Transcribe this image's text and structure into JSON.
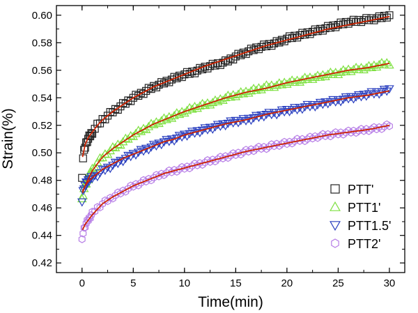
{
  "chart_data": {
    "type": "scatter",
    "title": "",
    "xlabel": "Time(min)",
    "ylabel": "Strain(%)",
    "xlim": [
      -2.5,
      31.5
    ],
    "ylim": [
      0.413,
      0.607
    ],
    "xticks": [
      0,
      5,
      10,
      15,
      20,
      25,
      30
    ],
    "yticks": [
      0.42,
      0.44,
      0.46,
      0.48,
      0.5,
      0.52,
      0.54,
      0.56,
      0.58,
      0.6
    ],
    "ytick_labels": [
      "0.42",
      "0.44",
      "0.46",
      "0.48",
      "0.50",
      "0.52",
      "0.54",
      "0.56",
      "0.58",
      "0.60"
    ],
    "fit_color": "#cc2200",
    "legend_position": "bottom-right",
    "series": [
      {
        "name": "PTT'",
        "marker": "square",
        "color": "#222222",
        "points": [
          [
            0,
            0.483
          ],
          [
            0.1,
            0.496
          ],
          [
            0.2,
            0.501
          ],
          [
            0.35,
            0.506
          ],
          [
            0.5,
            0.509
          ],
          [
            0.75,
            0.512
          ],
          [
            1,
            0.515
          ],
          [
            1.5,
            0.52
          ],
          [
            2,
            0.524
          ],
          [
            3,
            0.53
          ],
          [
            4,
            0.535
          ],
          [
            5,
            0.54
          ],
          [
            6,
            0.544
          ],
          [
            7,
            0.548
          ],
          [
            8,
            0.551
          ],
          [
            9,
            0.554
          ],
          [
            10,
            0.557
          ],
          [
            11,
            0.559
          ],
          [
            12,
            0.562
          ],
          [
            13,
            0.564
          ],
          [
            14,
            0.566
          ],
          [
            15,
            0.57
          ],
          [
            16,
            0.573
          ],
          [
            17,
            0.576
          ],
          [
            18,
            0.578
          ],
          [
            19,
            0.58
          ],
          [
            20,
            0.583
          ],
          [
            21,
            0.585
          ],
          [
            22,
            0.587
          ],
          [
            23,
            0.589
          ],
          [
            24,
            0.591
          ],
          [
            25,
            0.593
          ],
          [
            26,
            0.595
          ],
          [
            27,
            0.596
          ],
          [
            28,
            0.597
          ],
          [
            29,
            0.598
          ],
          [
            30,
            0.6
          ]
        ],
        "fit": [
          [
            0.05,
            0.497
          ],
          [
            0.3,
            0.506
          ],
          [
            0.6,
            0.511
          ],
          [
            1,
            0.515
          ],
          [
            1.5,
            0.52
          ],
          [
            2,
            0.524
          ],
          [
            3,
            0.53
          ],
          [
            4,
            0.535
          ],
          [
            5,
            0.54
          ],
          [
            6,
            0.544
          ],
          [
            7,
            0.548
          ],
          [
            8,
            0.551
          ],
          [
            9,
            0.554
          ],
          [
            10,
            0.557
          ],
          [
            12,
            0.563
          ],
          [
            14,
            0.568
          ],
          [
            16,
            0.573
          ],
          [
            18,
            0.578
          ],
          [
            20,
            0.582
          ],
          [
            22,
            0.586
          ],
          [
            24,
            0.59
          ],
          [
            26,
            0.593
          ],
          [
            28,
            0.596
          ],
          [
            30,
            0.599
          ]
        ]
      },
      {
        "name": "PTT1'",
        "marker": "triangle-up",
        "color": "#7ee040",
        "points": [
          [
            0,
            0.466
          ],
          [
            0.1,
            0.47
          ],
          [
            0.2,
            0.474
          ],
          [
            0.35,
            0.477
          ],
          [
            0.5,
            0.48
          ],
          [
            0.75,
            0.484
          ],
          [
            1,
            0.488
          ],
          [
            1.5,
            0.493
          ],
          [
            2,
            0.497
          ],
          [
            3,
            0.503
          ],
          [
            4,
            0.508
          ],
          [
            5,
            0.513
          ],
          [
            6,
            0.517
          ],
          [
            7,
            0.521
          ],
          [
            8,
            0.524
          ],
          [
            9,
            0.527
          ],
          [
            10,
            0.53
          ],
          [
            11,
            0.533
          ],
          [
            12,
            0.535
          ],
          [
            13,
            0.537
          ],
          [
            14,
            0.54
          ],
          [
            15,
            0.542
          ],
          [
            16,
            0.544
          ],
          [
            17,
            0.546
          ],
          [
            18,
            0.548
          ],
          [
            19,
            0.549
          ],
          [
            20,
            0.551
          ],
          [
            21,
            0.552
          ],
          [
            22,
            0.554
          ],
          [
            23,
            0.555
          ],
          [
            24,
            0.557
          ],
          [
            25,
            0.558
          ],
          [
            26,
            0.56
          ],
          [
            27,
            0.561
          ],
          [
            28,
            0.562
          ],
          [
            29,
            0.564
          ],
          [
            30,
            0.565
          ]
        ],
        "fit": [
          [
            0.05,
            0.471
          ],
          [
            0.3,
            0.476
          ],
          [
            0.6,
            0.481
          ],
          [
            1,
            0.487
          ],
          [
            1.5,
            0.492
          ],
          [
            2,
            0.497
          ],
          [
            3,
            0.503
          ],
          [
            4,
            0.508
          ],
          [
            5,
            0.513
          ],
          [
            6,
            0.517
          ],
          [
            7,
            0.521
          ],
          [
            8,
            0.524
          ],
          [
            9,
            0.527
          ],
          [
            10,
            0.53
          ],
          [
            12,
            0.535
          ],
          [
            14,
            0.54
          ],
          [
            16,
            0.544
          ],
          [
            18,
            0.547
          ],
          [
            20,
            0.551
          ],
          [
            22,
            0.554
          ],
          [
            24,
            0.557
          ],
          [
            26,
            0.56
          ],
          [
            28,
            0.562
          ],
          [
            30,
            0.565
          ]
        ]
      },
      {
        "name": "PTT1.5'",
        "marker": "triangle-down",
        "color": "#2a3fbf",
        "points": [
          [
            0,
            0.465
          ],
          [
            0.1,
            0.472
          ],
          [
            0.2,
            0.475
          ],
          [
            0.35,
            0.477
          ],
          [
            0.5,
            0.479
          ],
          [
            0.75,
            0.481
          ],
          [
            1,
            0.482
          ],
          [
            1.5,
            0.484
          ],
          [
            2,
            0.487
          ],
          [
            3,
            0.491
          ],
          [
            4,
            0.495
          ],
          [
            5,
            0.499
          ],
          [
            6,
            0.502
          ],
          [
            7,
            0.505
          ],
          [
            8,
            0.508
          ],
          [
            9,
            0.51
          ],
          [
            10,
            0.513
          ],
          [
            11,
            0.515
          ],
          [
            12,
            0.517
          ],
          [
            13,
            0.519
          ],
          [
            14,
            0.521
          ],
          [
            15,
            0.523
          ],
          [
            16,
            0.524
          ],
          [
            17,
            0.526
          ],
          [
            18,
            0.528
          ],
          [
            19,
            0.529
          ],
          [
            20,
            0.531
          ],
          [
            21,
            0.532
          ],
          [
            22,
            0.534
          ],
          [
            23,
            0.535
          ],
          [
            24,
            0.537
          ],
          [
            25,
            0.538
          ],
          [
            26,
            0.54
          ],
          [
            27,
            0.541
          ],
          [
            28,
            0.543
          ],
          [
            29,
            0.544
          ],
          [
            30,
            0.546
          ]
        ],
        "fit": [
          [
            0.05,
            0.472
          ],
          [
            0.3,
            0.476
          ],
          [
            0.6,
            0.479
          ],
          [
            1,
            0.482
          ],
          [
            1.5,
            0.485
          ],
          [
            2,
            0.488
          ],
          [
            3,
            0.492
          ],
          [
            4,
            0.496
          ],
          [
            5,
            0.499
          ],
          [
            6,
            0.502
          ],
          [
            7,
            0.505
          ],
          [
            8,
            0.508
          ],
          [
            9,
            0.51
          ],
          [
            10,
            0.513
          ],
          [
            12,
            0.517
          ],
          [
            14,
            0.521
          ],
          [
            16,
            0.524
          ],
          [
            18,
            0.528
          ],
          [
            20,
            0.531
          ],
          [
            22,
            0.534
          ],
          [
            24,
            0.537
          ],
          [
            26,
            0.54
          ],
          [
            28,
            0.542
          ],
          [
            30,
            0.545
          ]
        ]
      },
      {
        "name": "PTT2'",
        "marker": "hexagon",
        "color": "#b77ee6",
        "points": [
          [
            0,
            0.436
          ],
          [
            0.1,
            0.442
          ],
          [
            0.2,
            0.445
          ],
          [
            0.35,
            0.448
          ],
          [
            0.5,
            0.45
          ],
          [
            0.75,
            0.453
          ],
          [
            1,
            0.456
          ],
          [
            1.5,
            0.46
          ],
          [
            2,
            0.463
          ],
          [
            3,
            0.468
          ],
          [
            4,
            0.472
          ],
          [
            5,
            0.476
          ],
          [
            6,
            0.479
          ],
          [
            7,
            0.482
          ],
          [
            8,
            0.485
          ],
          [
            9,
            0.487
          ],
          [
            10,
            0.489
          ],
          [
            11,
            0.491
          ],
          [
            12,
            0.493
          ],
          [
            13,
            0.495
          ],
          [
            14,
            0.497
          ],
          [
            15,
            0.499
          ],
          [
            16,
            0.501
          ],
          [
            17,
            0.503
          ],
          [
            18,
            0.504
          ],
          [
            19,
            0.506
          ],
          [
            20,
            0.507
          ],
          [
            21,
            0.509
          ],
          [
            22,
            0.51
          ],
          [
            23,
            0.512
          ],
          [
            24,
            0.513
          ],
          [
            25,
            0.514
          ],
          [
            26,
            0.515
          ],
          [
            27,
            0.516
          ],
          [
            28,
            0.517
          ],
          [
            29,
            0.518
          ],
          [
            30,
            0.52
          ]
        ],
        "fit": [
          [
            0.05,
            0.444
          ],
          [
            0.3,
            0.448
          ],
          [
            0.6,
            0.451
          ],
          [
            1,
            0.455
          ],
          [
            1.5,
            0.459
          ],
          [
            2,
            0.463
          ],
          [
            3,
            0.468
          ],
          [
            4,
            0.472
          ],
          [
            5,
            0.476
          ],
          [
            6,
            0.479
          ],
          [
            7,
            0.482
          ],
          [
            8,
            0.485
          ],
          [
            9,
            0.487
          ],
          [
            10,
            0.489
          ],
          [
            12,
            0.493
          ],
          [
            14,
            0.497
          ],
          [
            16,
            0.501
          ],
          [
            18,
            0.504
          ],
          [
            20,
            0.507
          ],
          [
            22,
            0.51
          ],
          [
            24,
            0.513
          ],
          [
            26,
            0.515
          ],
          [
            28,
            0.517
          ],
          [
            30,
            0.52
          ]
        ]
      }
    ]
  }
}
